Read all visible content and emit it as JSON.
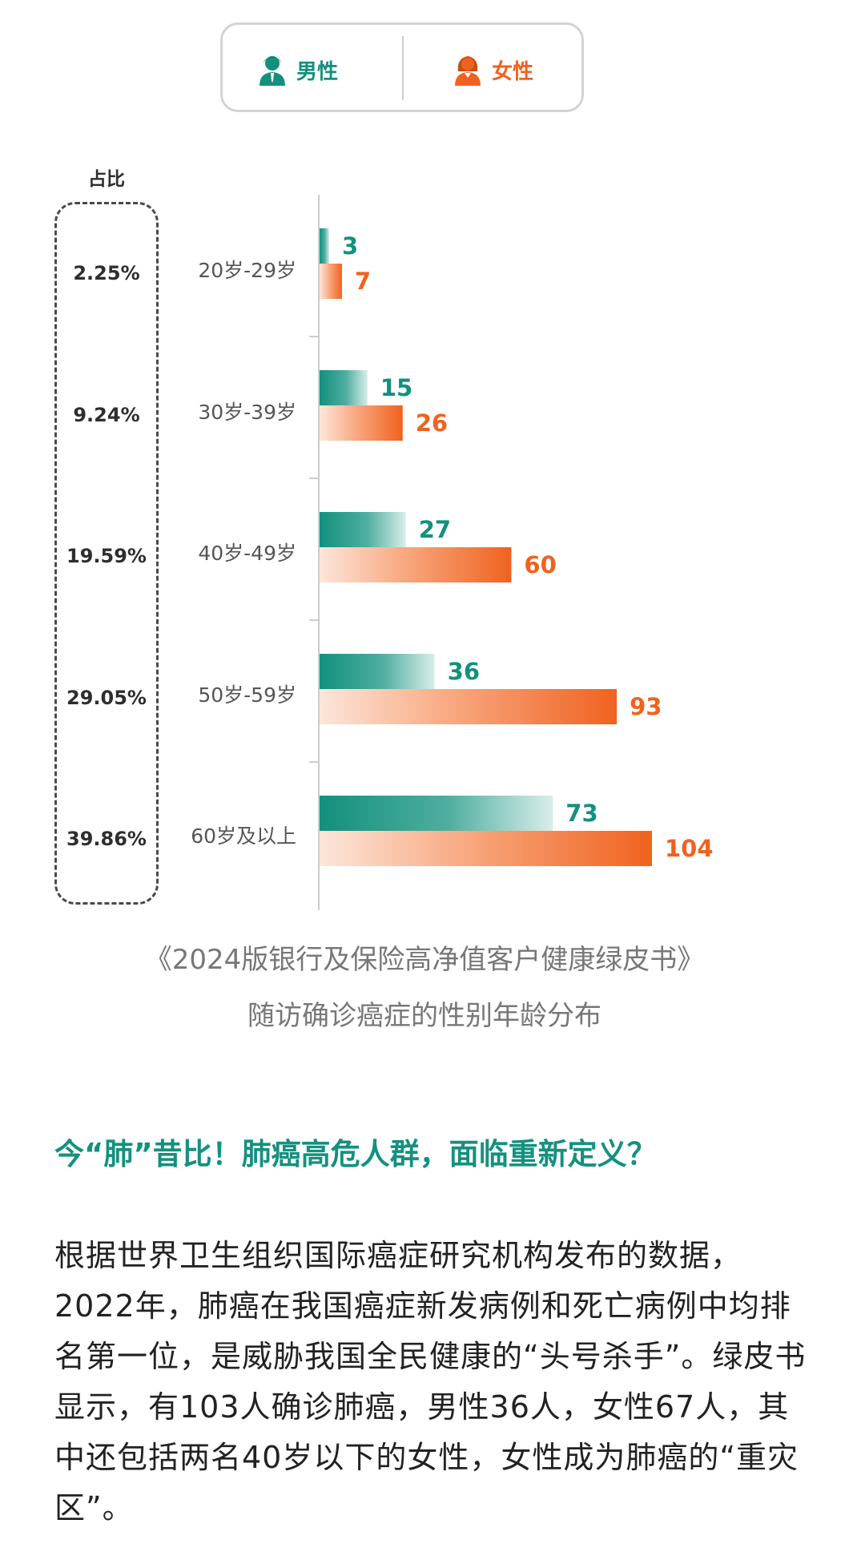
{
  "legend": {
    "male_icon": "male-person-icon",
    "female_icon": "female-person-icon",
    "male_label": "男性",
    "female_label": "女性"
  },
  "colors": {
    "male": "#13907e",
    "female": "#f0621f"
  },
  "chart_data": {
    "type": "bar",
    "orientation": "horizontal",
    "categories": [
      "20岁-29岁",
      "30岁-39岁",
      "40岁-49岁",
      "50岁-59岁",
      "60岁及以上"
    ],
    "series": [
      {
        "name": "男性",
        "values": [
          3,
          15,
          27,
          36,
          73
        ]
      },
      {
        "name": "女性",
        "values": [
          7,
          26,
          60,
          93,
          104
        ]
      }
    ],
    "share_title": "占比",
    "shares": [
      "2.25%",
      "9.24%",
      "19.59%",
      "29.05%",
      "39.86%"
    ],
    "xlim": [
      0,
      104
    ]
  },
  "caption": {
    "line1": "《2024版银行及保险高净值客户健康绿皮书》",
    "line2": "随访确诊癌症的性别年龄分布"
  },
  "heading": "今“肺”昔比！肺癌高危人群，面临重新定义？",
  "paragraph": "根据世界卫生组织国际癌症研究机构发布的数据，2022年，肺癌在我国癌症新发病例和死亡病例中均排名第一位，是威胁我国全民健康的“头号杀手”。绿皮书显示，有103人确诊肺癌，男性36人，女性67人，其中还包括两名40岁以下的女性，女性成为肺癌的“重灾区”。"
}
